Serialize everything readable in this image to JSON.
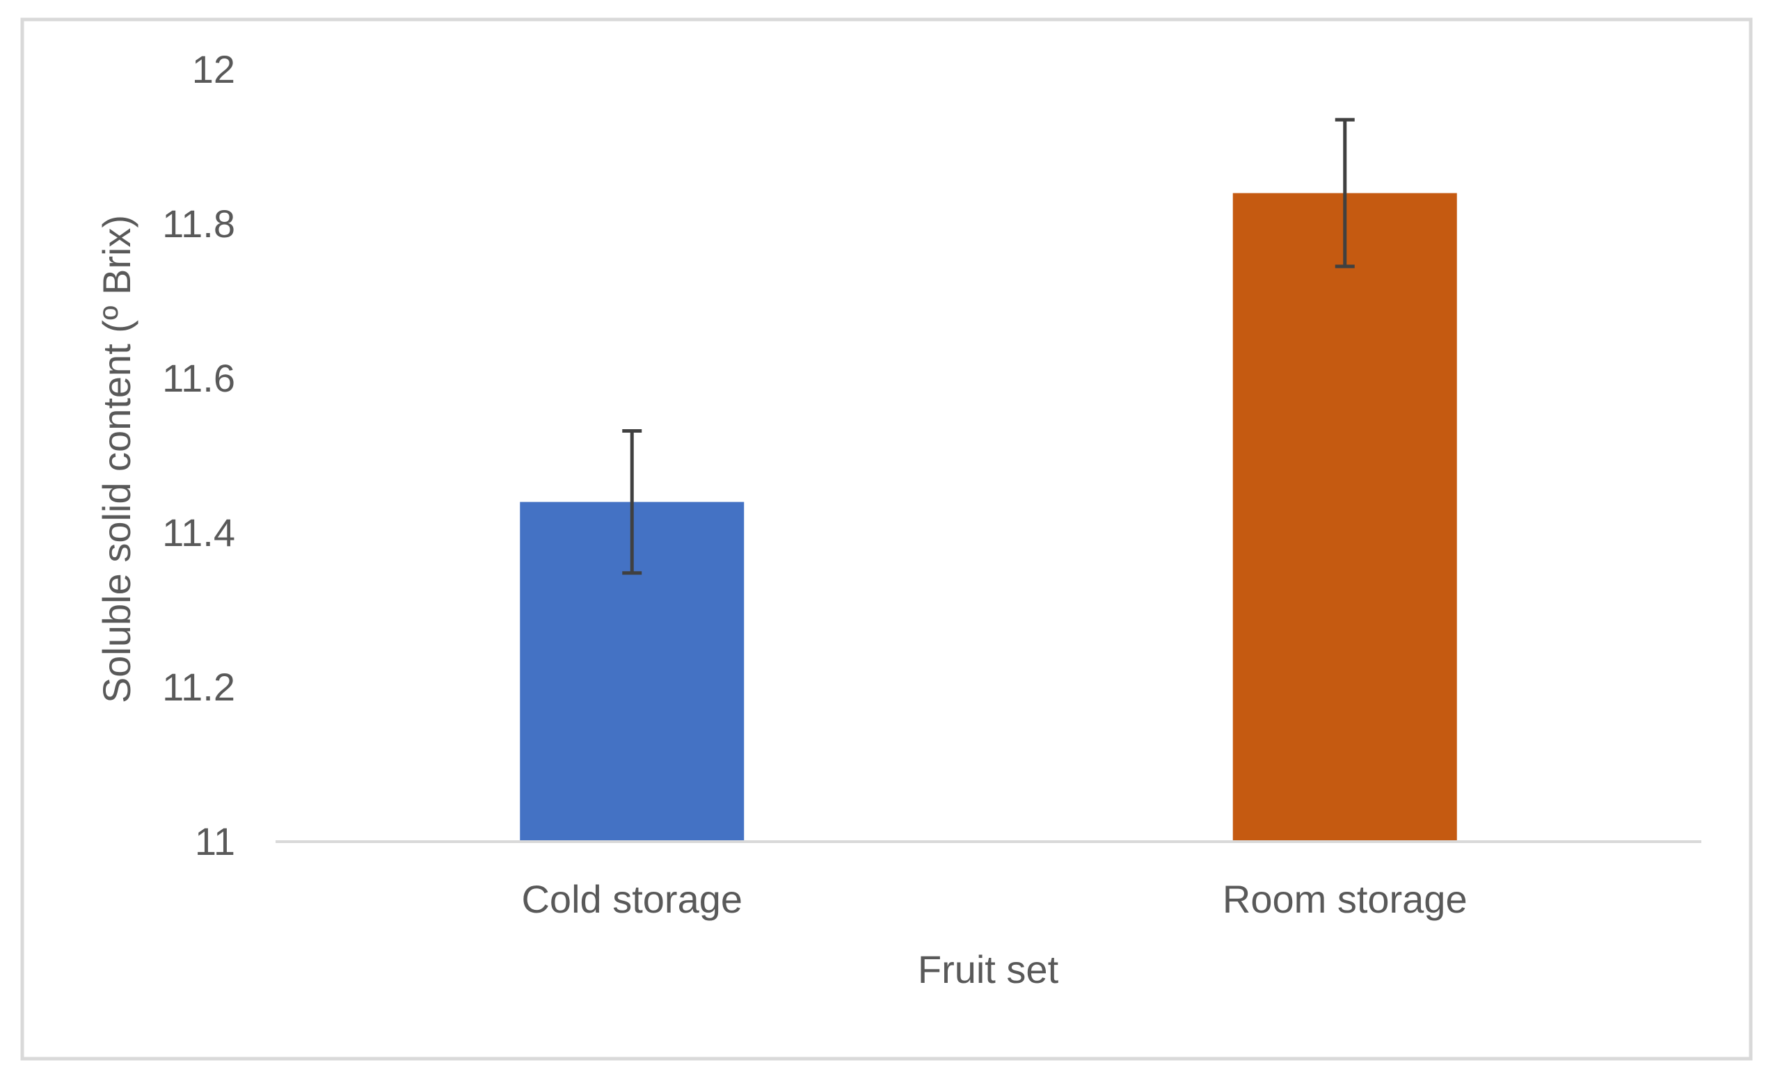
{
  "chart_data": {
    "type": "bar",
    "categories": [
      "Cold storage",
      "Room storage"
    ],
    "series": [
      {
        "values": [
          11.44,
          11.84
        ],
        "errors": [
          0.092,
          0.095
        ],
        "colors": [
          "#4472C4",
          "#C55A11"
        ]
      }
    ],
    "title": "",
    "xlabel": "Fruit set",
    "ylabel": "Soluble solid content (º Brix)",
    "ylim": [
      11,
      12
    ],
    "yticks": [
      "11",
      "11.2",
      "11.4",
      "11.6",
      "11.8",
      "12"
    ],
    "grid": false,
    "legend": "none"
  },
  "colors": {
    "axis": "#D9D9D9",
    "frame": "#D9D9D9",
    "error_bar": "#404040",
    "text": "#595959"
  }
}
